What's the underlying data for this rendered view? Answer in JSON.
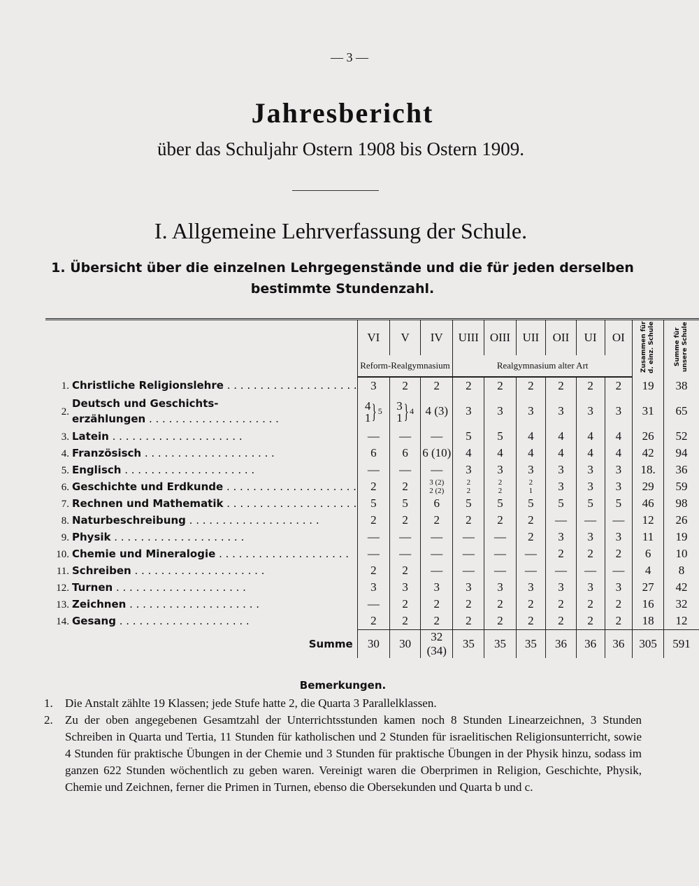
{
  "page_number": "— 3 —",
  "title": "Jahresbericht",
  "subtitle": "über das Schuljahr Ostern 1908 bis Ostern 1909.",
  "section": "I. Allgemeine Lehrverfassung der Schule.",
  "subsection": {
    "number": "1.",
    "text": "Übersicht über die einzelnen Lehrgegenstände und die für jeden derselben bestimmte Stundenzahl."
  },
  "table": {
    "columns": [
      "VI",
      "V",
      "IV",
      "UIII",
      "OIII",
      "UII",
      "OII",
      "UI",
      "OI",
      "Zusammen für d. einz. Schule",
      "Summe für unsere Schule"
    ],
    "groups": [
      "Reform-Realgymnasium",
      "Realgymnasium alter Art"
    ],
    "rows": [
      {
        "num": "1.",
        "label": "Christliche Religionslehre",
        "cells": [
          "3",
          "2",
          "2",
          "2",
          "2",
          "2",
          "2",
          "2",
          "2",
          "19",
          "38"
        ]
      },
      {
        "num": "2.",
        "label": [
          "Deutsch und Geschichts-",
          "erzählungen"
        ],
        "cells": [
          {
            "lines": [
              "4",
              "1"
            ],
            "total": "5"
          },
          {
            "lines": [
              "3",
              "1"
            ],
            "total": "4"
          },
          "4 (3)",
          "3",
          "3",
          "3",
          "3",
          "3",
          "3",
          "31",
          "65"
        ]
      },
      {
        "num": "3.",
        "label": "Latein",
        "cells": [
          "—",
          "—",
          "—",
          "5",
          "5",
          "4",
          "4",
          "4",
          "4",
          "26",
          "52"
        ]
      },
      {
        "num": "4.",
        "label": "Französisch",
        "cells": [
          "6",
          "6",
          "6 (10)",
          "4",
          "4",
          "4",
          "4",
          "4",
          "4",
          "42",
          "94"
        ]
      },
      {
        "num": "5.",
        "label": "Englisch",
        "cells": [
          "—",
          "—",
          "—",
          "3",
          "3",
          "3",
          "3",
          "3",
          "3",
          "18.",
          "36"
        ]
      },
      {
        "num": "6.",
        "label": "Geschichte und Erdkunde",
        "cells": [
          "2",
          "2",
          [
            "3 (2)",
            "2 (2)"
          ],
          [
            "2",
            "2"
          ],
          [
            "2",
            "2"
          ],
          [
            "2",
            "1"
          ],
          "3",
          "3",
          "3",
          "29",
          "59"
        ]
      },
      {
        "num": "7.",
        "label": "Rechnen und Mathematik",
        "cells": [
          "5",
          "5",
          "6",
          "5",
          "5",
          "5",
          "5",
          "5",
          "5",
          "46",
          "98"
        ]
      },
      {
        "num": "8.",
        "label": "Naturbeschreibung",
        "cells": [
          "2",
          "2",
          "2",
          "2",
          "2",
          "2",
          "—",
          "—",
          "—",
          "12",
          "26"
        ]
      },
      {
        "num": "9.",
        "label": "Physik",
        "cells": [
          "—",
          "—",
          "—",
          "—",
          "—",
          "2",
          "3",
          "3",
          "3",
          "11",
          "19"
        ]
      },
      {
        "num": "10.",
        "label": "Chemie und Mineralogie",
        "cells": [
          "—",
          "—",
          "—",
          "—",
          "—",
          "—",
          "2",
          "2",
          "2",
          "6",
          "10"
        ]
      },
      {
        "num": "11.",
        "label": "Schreiben",
        "cells": [
          "2",
          "2",
          "—",
          "—",
          "—",
          "—",
          "—",
          "—",
          "—",
          "4",
          "8"
        ]
      },
      {
        "num": "12.",
        "label": "Turnen",
        "cells": [
          "3",
          "3",
          "3",
          "3",
          "3",
          "3",
          "3",
          "3",
          "3",
          "27",
          "42"
        ]
      },
      {
        "num": "13.",
        "label": "Zeichnen",
        "cells": [
          "—",
          "2",
          "2",
          "2",
          "2",
          "2",
          "2",
          "2",
          "2",
          "16",
          "32"
        ]
      },
      {
        "num": "14.",
        "label": "Gesang",
        "cells": [
          "2",
          "2",
          "2",
          "2",
          "2",
          "2",
          "2",
          "2",
          "2",
          "18",
          "12"
        ]
      }
    ],
    "total": {
      "label": "Summe",
      "cells": [
        "30",
        "30",
        "32 (34)",
        "35",
        "35",
        "35",
        "36",
        "36",
        "36",
        "305",
        "591"
      ]
    }
  },
  "remarks": {
    "heading": "Bemerkungen.",
    "items": [
      {
        "num": "1.",
        "text": "Die Anstalt zählte 19 Klassen; jede Stufe hatte 2, die Quarta 3 Parallelklassen."
      },
      {
        "num": "2.",
        "text": "Zu der oben angegebenen Gesamtzahl der Unterrichtsstunden kamen noch 8 Stunden Linearzeichnen, 3 Stunden Schreiben in Quarta und Tertia, 11 Stunden für katholischen und 2 Stunden für israelitischen Religionsunterricht, sowie 4 Stunden für praktische Übungen in der Chemie und 3 Stunden für praktische Übungen in der Physik hinzu, sodass im ganzen 622 Stunden wöchentlich zu geben waren. Vereinigt waren die Oberprimen in Religion, Geschichte, Physik, Chemie und Zeichnen, ferner die Primen in Turnen, ebenso die Obersekunden und Quarta b und c."
      }
    ]
  }
}
